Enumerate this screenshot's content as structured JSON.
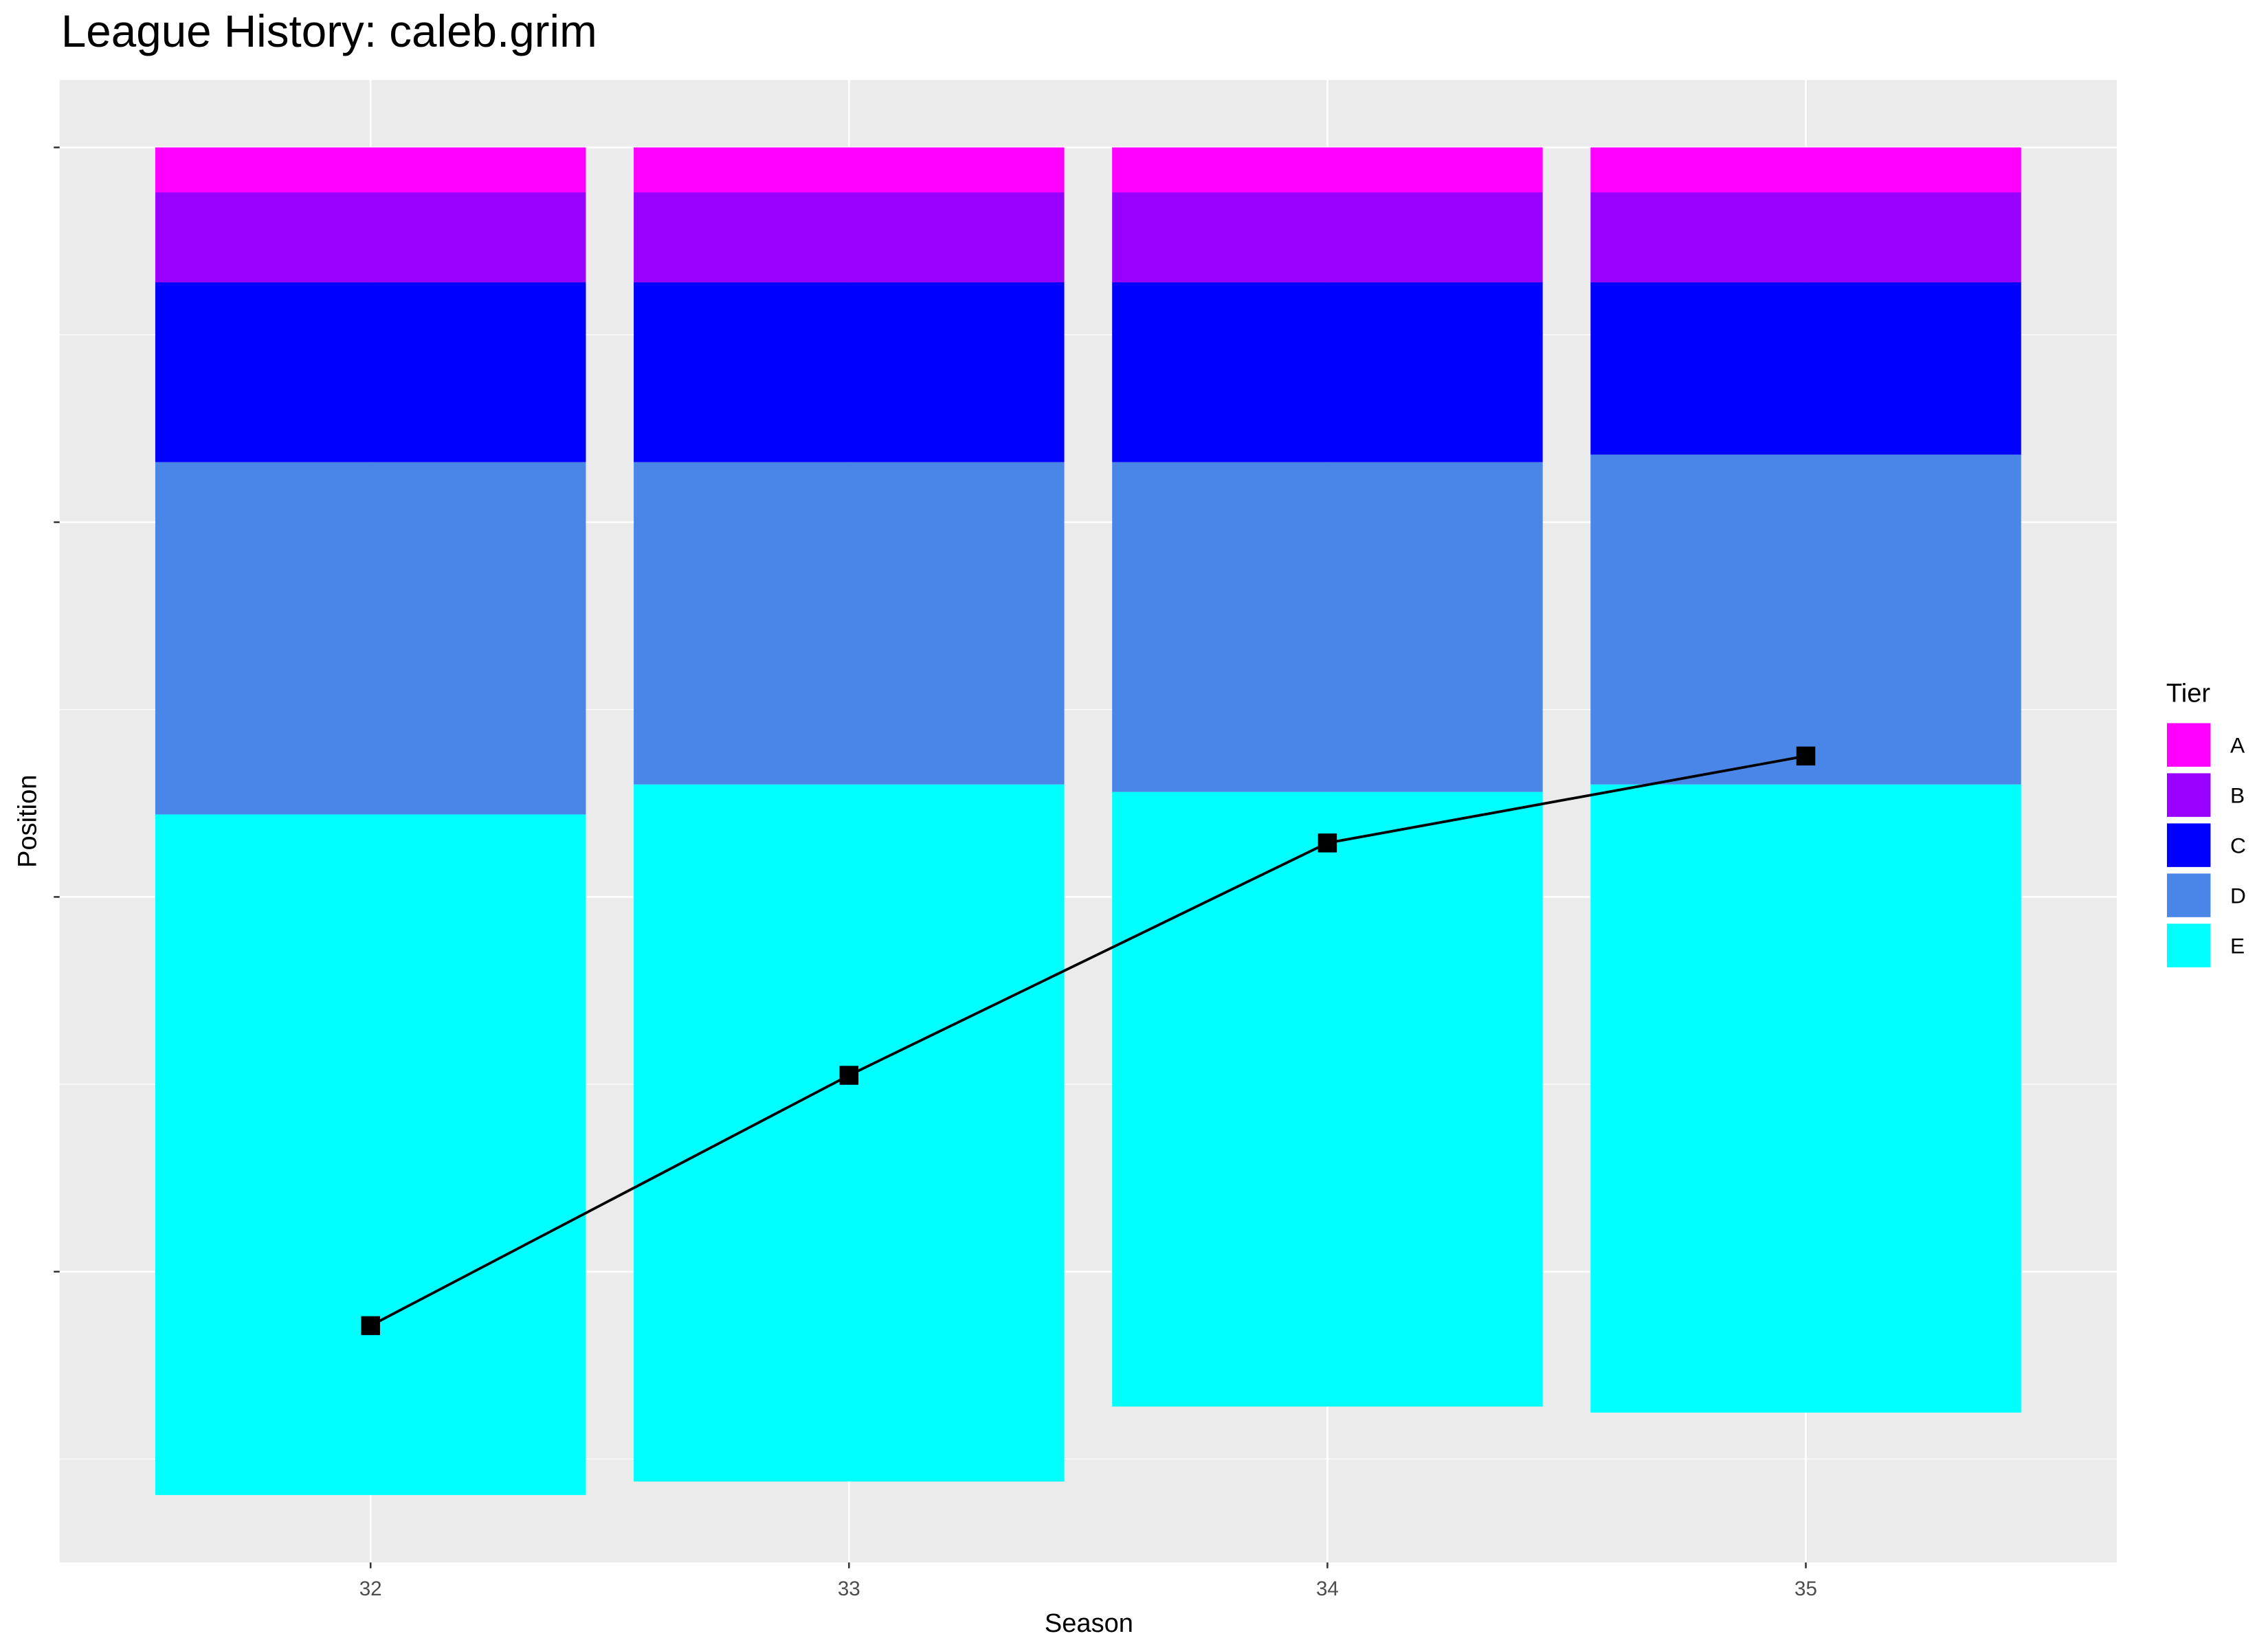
{
  "chart_data": {
    "type": "stacked-bar-line",
    "title": "League History: caleb.grim",
    "x_label": "Season",
    "y_label": "Position",
    "legend_title": "Tier",
    "categories": [
      "32",
      "33",
      "34",
      "35"
    ],
    "series": [
      {
        "name": "A",
        "color": "#ff00ff",
        "values": [
          3,
          3,
          3,
          3
        ]
      },
      {
        "name": "B",
        "color": "#9900ff",
        "values": [
          6,
          6,
          6,
          6
        ]
      },
      {
        "name": "C",
        "color": "#0000ff",
        "values": [
          12,
          12,
          12,
          11.5
        ]
      },
      {
        "name": "D",
        "color": "#4a86e8",
        "values": [
          23.5,
          21.5,
          22,
          22
        ]
      },
      {
        "name": "E",
        "color": "#00ffff",
        "values": [
          45.4,
          46.5,
          41,
          41.9
        ]
      }
    ],
    "line": {
      "color": "#000000",
      "values": [
        78.6,
        61.9,
        46.4,
        40.6
      ]
    },
    "ylim": [
      -4.5,
      94.4
    ],
    "y_reversed": true,
    "yticks": [
      0,
      25,
      50,
      75
    ],
    "grid": true
  }
}
